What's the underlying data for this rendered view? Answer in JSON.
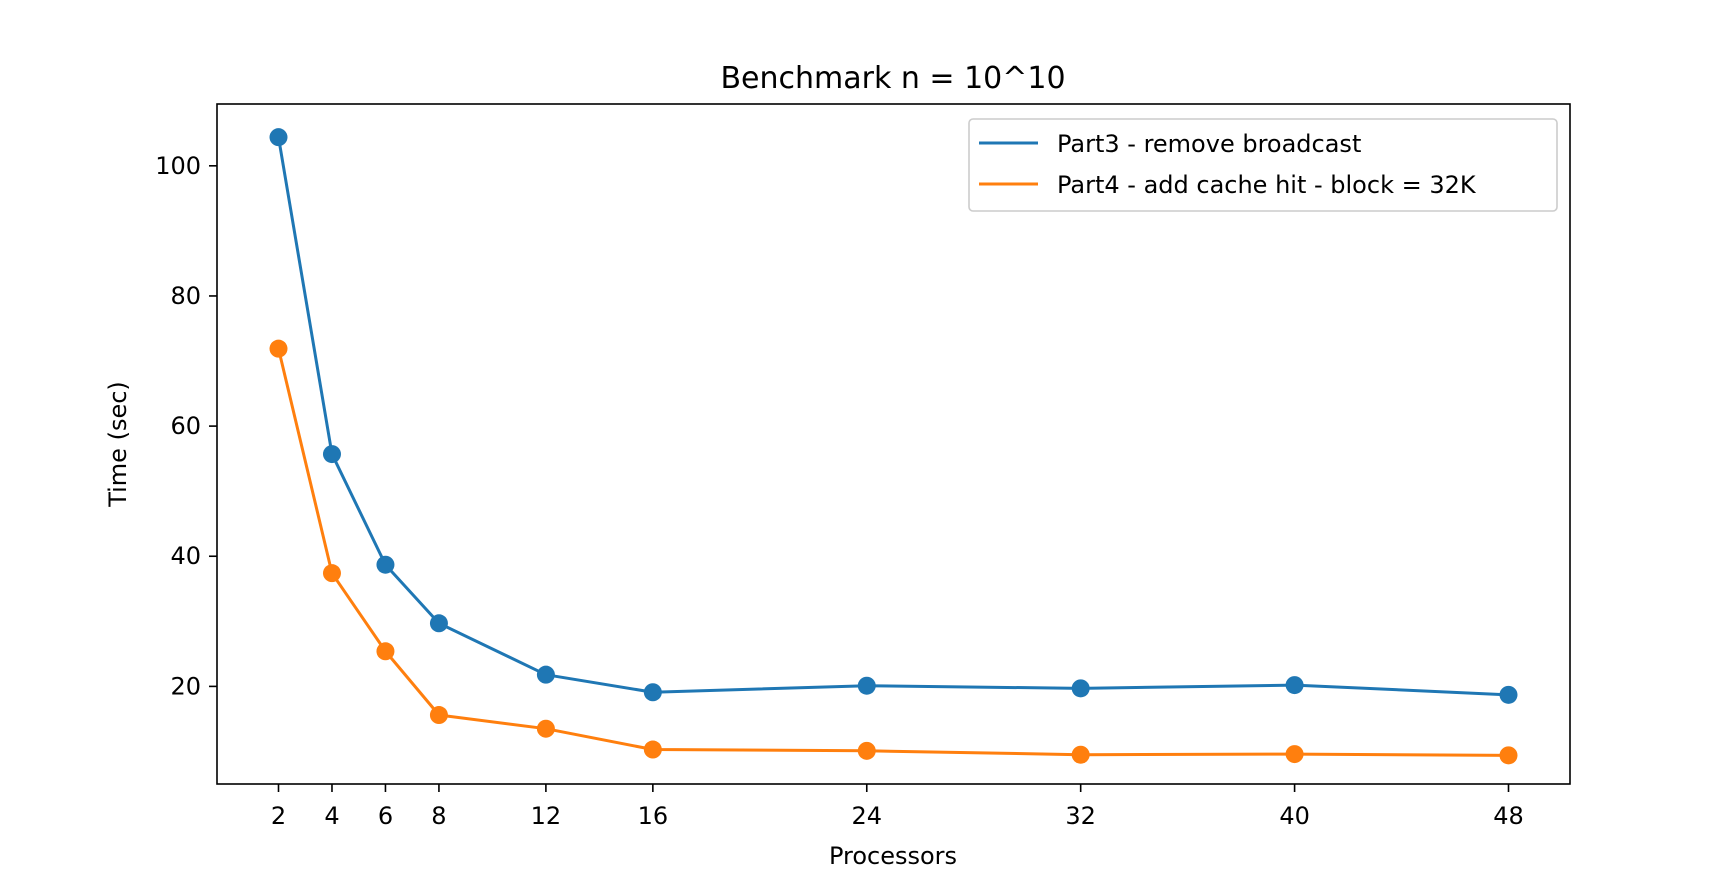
{
  "chart_data": {
    "type": "line",
    "title": "Benchmark n = 10^10",
    "xlabel": "Processors",
    "ylabel": "Time (sec)",
    "x": [
      2,
      4,
      6,
      8,
      12,
      16,
      24,
      32,
      40,
      48
    ],
    "xticks": [
      2,
      4,
      6,
      8,
      12,
      16,
      24,
      32,
      40,
      48
    ],
    "yticks": [
      20,
      40,
      60,
      80,
      100
    ],
    "xlim": [
      -0.3,
      50.3
    ],
    "ylim": [
      5,
      109.5
    ],
    "grid": false,
    "legend_position": "top-right",
    "series": [
      {
        "name": "Part3 - remove broadcast",
        "color": "#1f77b4",
        "values": [
          104.4,
          55.7,
          38.7,
          29.7,
          21.8,
          19.1,
          20.1,
          19.7,
          20.2,
          18.7
        ]
      },
      {
        "name": "Part4 - add cache hit - block = 32K",
        "color": "#ff7f0e",
        "values": [
          71.9,
          37.4,
          25.4,
          15.6,
          13.5,
          10.3,
          10.1,
          9.5,
          9.6,
          9.4
        ]
      }
    ]
  }
}
